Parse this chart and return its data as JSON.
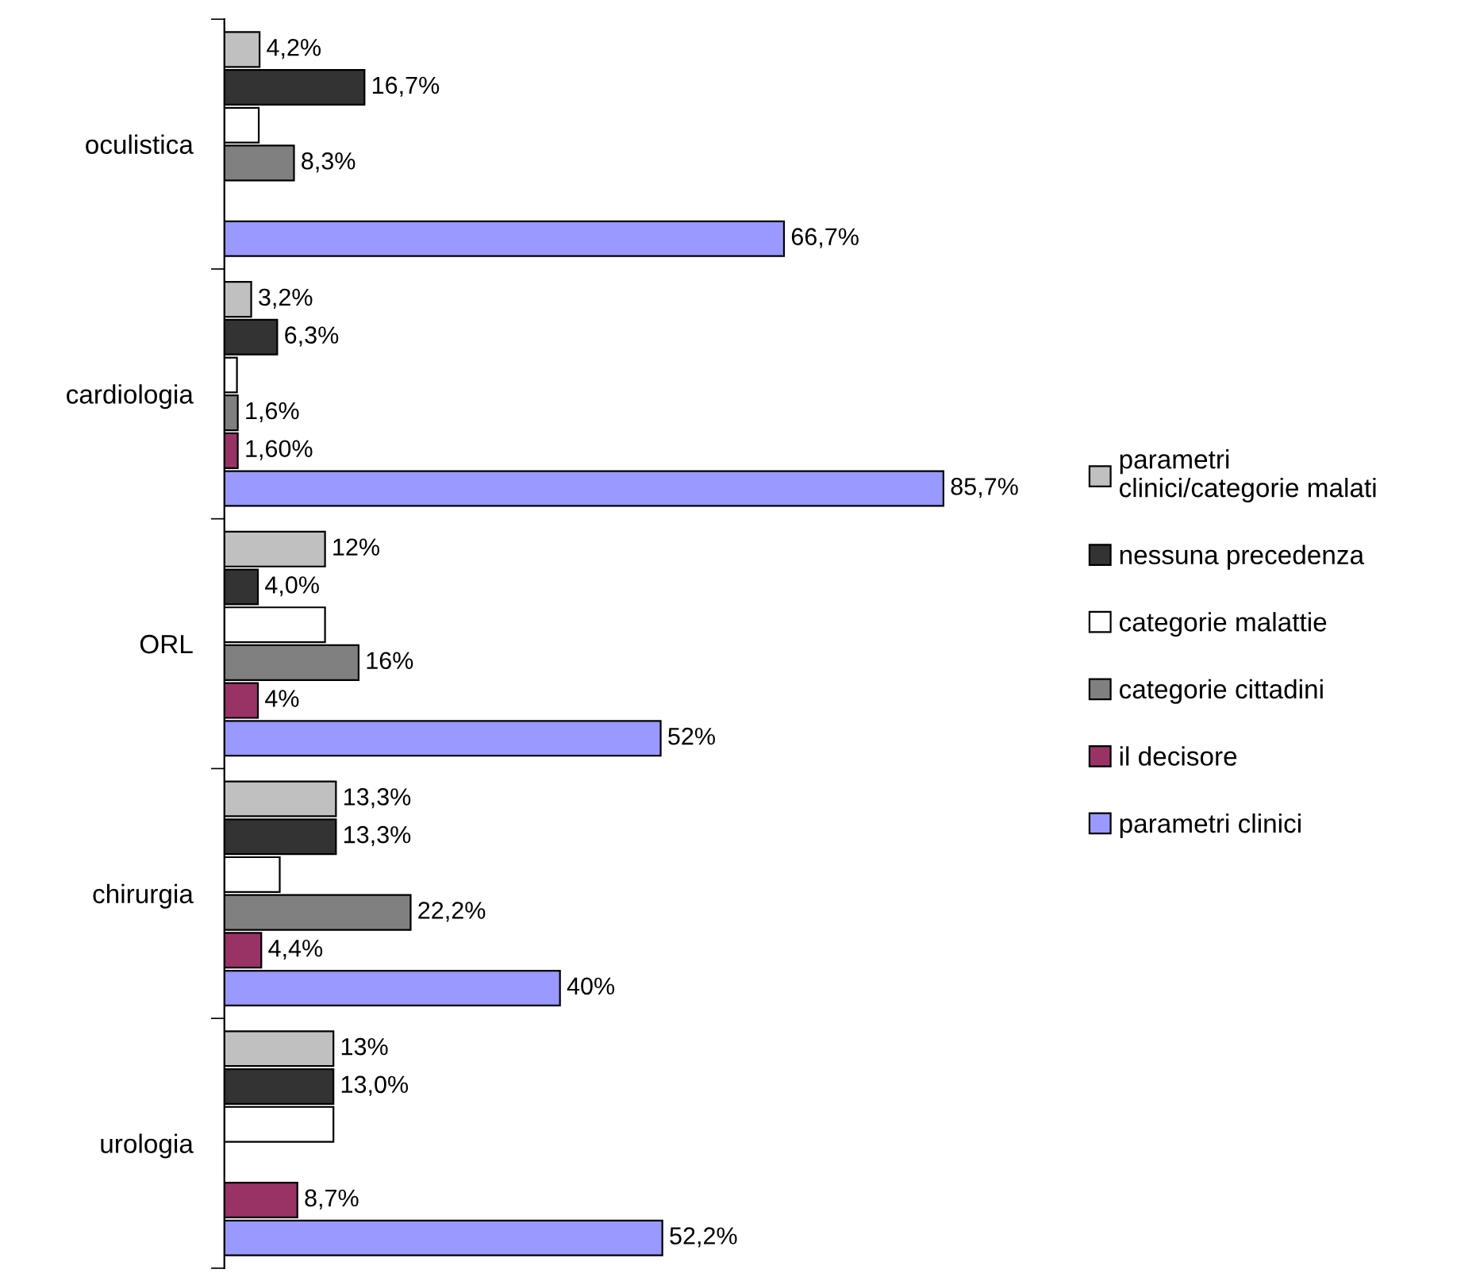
{
  "chart_data": {
    "type": "bar",
    "orientation": "horizontal",
    "categories": [
      "oculistica",
      "cardiologia",
      "ORL",
      "chirurgia",
      "urologia"
    ],
    "series": [
      {
        "name": "parametri\nclinici/categorie malati",
        "color": "#c0c0c0",
        "values": [
          4.2,
          3.2,
          12,
          13.3,
          13
        ],
        "value_labels": [
          "4,2%",
          "3,2%",
          "12%",
          "13,3%",
          "13%"
        ]
      },
      {
        "name": "nessuna precedenza",
        "color": "#333333",
        "values": [
          16.7,
          6.3,
          4.0,
          13.3,
          13.0
        ],
        "value_labels": [
          "16,7%",
          "6,3%",
          "4,0%",
          "13,3%",
          "13,0%"
        ]
      },
      {
        "name": "categorie malattie",
        "color": "#ffffff",
        "values": [
          4.1,
          1.5,
          12,
          6.6,
          13
        ],
        "value_labels": [
          null,
          null,
          null,
          null,
          null
        ]
      },
      {
        "name": "categorie cittadini",
        "color": "#808080",
        "values": [
          8.3,
          1.6,
          16,
          22.2,
          null
        ],
        "value_labels": [
          "8,3%",
          "1,6%",
          "16%",
          "22,2%",
          null
        ]
      },
      {
        "name": "il decisore",
        "color": "#993366",
        "values": [
          null,
          1.6,
          4,
          4.4,
          8.7
        ],
        "value_labels": [
          null,
          "1,60%",
          "4%",
          "4,4%",
          "8,7%"
        ]
      },
      {
        "name": "parametri clinici",
        "color": "#9999ff",
        "values": [
          66.7,
          85.7,
          52,
          40,
          52.2
        ],
        "value_labels": [
          "66,7%",
          "85,7%",
          "52%",
          "40%",
          "52,2%"
        ]
      }
    ],
    "legend": "right",
    "grid": false
  }
}
